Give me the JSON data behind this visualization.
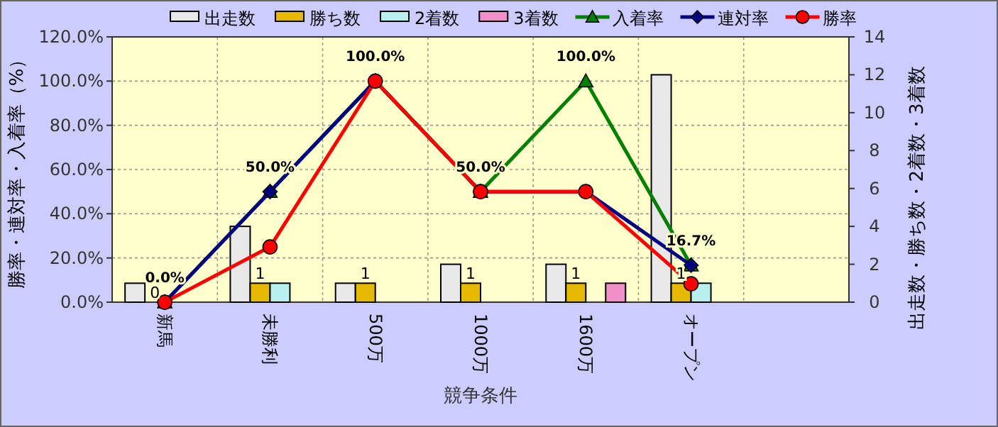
{
  "chart_data": {
    "type": "bar",
    "categories": [
      "新馬",
      "未勝利",
      "500万",
      "1000万",
      "1600万",
      "オープン",
      null
    ],
    "xlabel": "競争条件",
    "ylabel": "勝率・連対率・入着率（%）",
    "y2label": "出走数・勝ち数・2着数・3着数",
    "ylim": [
      0,
      120
    ],
    "yticks": [
      {
        "value": 0,
        "label": "0.0%"
      },
      {
        "value": 20,
        "label": "20.0%"
      },
      {
        "value": 40,
        "label": "40.0%"
      },
      {
        "value": 60,
        "label": "60.0%"
      },
      {
        "value": 80,
        "label": "80.0%"
      },
      {
        "value": 100,
        "label": "100.0%"
      },
      {
        "value": 120,
        "label": "120.0%"
      }
    ],
    "y2lim": [
      0,
      14
    ],
    "y2ticks": [
      0,
      2,
      4,
      6,
      8,
      10,
      12,
      14
    ],
    "grid": true,
    "legend": "top",
    "series": [
      {
        "name": "出走数",
        "axis": "y2",
        "color": "#e8e8e8",
        "values": [
          1,
          4,
          1,
          2,
          2,
          12,
          null
        ]
      },
      {
        "name": "勝ち数",
        "axis": "y2",
        "color": "#e6b800",
        "values": [
          0,
          1,
          1,
          1,
          1,
          1,
          null
        ],
        "value_labels": [
          "0",
          "1",
          "1",
          "1",
          "1",
          "1",
          null
        ]
      },
      {
        "name": "2着数",
        "axis": "y2",
        "color": "#b8f0f0",
        "values": [
          0,
          1,
          0,
          0,
          0,
          1,
          null
        ]
      },
      {
        "name": "3着数",
        "axis": "y2",
        "color": "#f090c8",
        "values": [
          0,
          0,
          0,
          0,
          1,
          0,
          null
        ]
      },
      {
        "name": "入着率",
        "type": "line",
        "color": "#008000",
        "marker": "triangle",
        "values": [
          0,
          50,
          100,
          50,
          100,
          16.7,
          null
        ],
        "value_labels": [
          "0.0%",
          "50.0%",
          "100.0%",
          "50.0%",
          "100.0%",
          "16.7%",
          null
        ]
      },
      {
        "name": "連対率",
        "type": "line",
        "color": "#000080",
        "marker": "diamond",
        "values": [
          0,
          50,
          100,
          50,
          50,
          16.7,
          null
        ]
      },
      {
        "name": "勝率",
        "type": "line",
        "color": "#ff0000",
        "marker": "circle",
        "values": [
          0,
          25,
          100,
          50,
          50,
          8.3,
          null
        ]
      }
    ]
  }
}
